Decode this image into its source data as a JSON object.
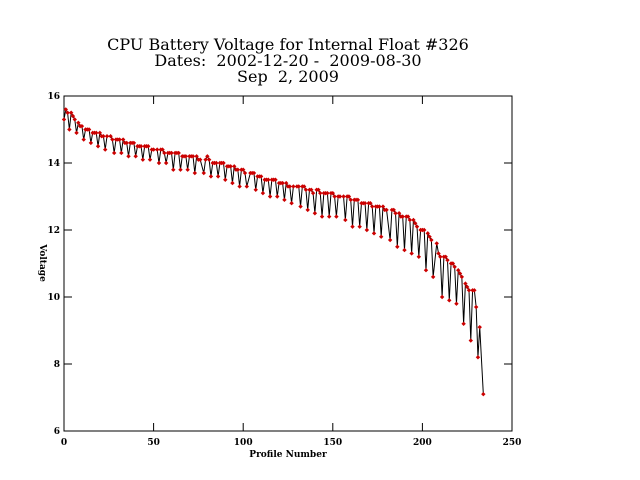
{
  "chart_data": {
    "type": "line",
    "title": [
      "CPU Battery Voltage for Internal Float #326",
      "Dates:  2002-12-20 -  2009-08-30",
      "Sep  2, 2009"
    ],
    "x_label": "Profile Number",
    "y_label": "Voltage",
    "xlim": [
      0,
      250
    ],
    "xticks": [
      0,
      50,
      100,
      150,
      200,
      250
    ],
    "ylim": [
      6,
      16
    ],
    "yticks": [
      6,
      8,
      10,
      12,
      14,
      16
    ],
    "line_color": "#000000",
    "marker_color": "#cc0000",
    "x": [
      0,
      1,
      2,
      3,
      4,
      5,
      6,
      7,
      8,
      9,
      10,
      11,
      12,
      13,
      14,
      15,
      16,
      17,
      18,
      19,
      20,
      21,
      22,
      23,
      24,
      26,
      27,
      28,
      29,
      30,
      31,
      32,
      33,
      34,
      35,
      36,
      37,
      38,
      39,
      40,
      41,
      42,
      43,
      44,
      45,
      46,
      47,
      48,
      49,
      50,
      52,
      53,
      54,
      55,
      56,
      57,
      58,
      59,
      60,
      61,
      62,
      63,
      64,
      65,
      66,
      67,
      68,
      69,
      70,
      71,
      72,
      73,
      74,
      75,
      76,
      78,
      79,
      80,
      81,
      82,
      83,
      84,
      85,
      86,
      87,
      88,
      89,
      90,
      91,
      92,
      93,
      94,
      95,
      96,
      97,
      98,
      99,
      100,
      101,
      102,
      104,
      105,
      106,
      107,
      108,
      109,
      110,
      111,
      112,
      113,
      114,
      115,
      116,
      117,
      118,
      119,
      120,
      121,
      122,
      123,
      124,
      125,
      126,
      127,
      128,
      130,
      131,
      132,
      133,
      134,
      135,
      136,
      137,
      138,
      139,
      140,
      141,
      142,
      143,
      144,
      145,
      146,
      147,
      148,
      149,
      150,
      151,
      152,
      153,
      154,
      156,
      157,
      158,
      159,
      160,
      161,
      162,
      163,
      164,
      165,
      166,
      167,
      168,
      169,
      170,
      171,
      172,
      173,
      174,
      175,
      176,
      177,
      178,
      179,
      180,
      182,
      183,
      184,
      185,
      186,
      187,
      188,
      189,
      190,
      191,
      192,
      193,
      194,
      195,
      196,
      197,
      198,
      199,
      200,
      201,
      202,
      203,
      204,
      205,
      206,
      208,
      209,
      210,
      211,
      212,
      213,
      214,
      215,
      216,
      217,
      218,
      219,
      220,
      221,
      222,
      223,
      224,
      225,
      226,
      227,
      228,
      229,
      230,
      231,
      232,
      234
    ],
    "values": [
      15.3,
      15.6,
      15.5,
      15.0,
      15.5,
      15.4,
      15.3,
      14.9,
      15.2,
      15.1,
      15.1,
      14.7,
      15.0,
      15.0,
      15.0,
      14.6,
      14.9,
      14.9,
      14.9,
      14.5,
      14.9,
      14.8,
      14.8,
      14.4,
      14.8,
      14.8,
      14.7,
      14.3,
      14.7,
      14.7,
      14.7,
      14.3,
      14.7,
      14.6,
      14.6,
      14.2,
      14.6,
      14.6,
      14.6,
      14.2,
      14.5,
      14.5,
      14.5,
      14.1,
      14.5,
      14.5,
      14.5,
      14.1,
      14.4,
      14.4,
      14.4,
      14.0,
      14.4,
      14.4,
      14.3,
      14.0,
      14.3,
      14.3,
      14.3,
      13.8,
      14.3,
      14.3,
      14.3,
      13.8,
      14.2,
      14.2,
      14.2,
      13.8,
      14.2,
      14.2,
      14.2,
      13.7,
      14.2,
      14.1,
      14.1,
      13.7,
      14.1,
      14.2,
      14.1,
      13.6,
      14.0,
      14.0,
      14.0,
      13.6,
      14.0,
      14.0,
      14.0,
      13.5,
      13.9,
      13.9,
      13.9,
      13.4,
      13.9,
      13.8,
      13.8,
      13.3,
      13.8,
      13.8,
      13.7,
      13.3,
      13.7,
      13.7,
      13.7,
      13.2,
      13.6,
      13.6,
      13.6,
      13.1,
      13.5,
      13.5,
      13.5,
      13.0,
      13.5,
      13.5,
      13.5,
      13.0,
      13.4,
      13.4,
      13.4,
      12.9,
      13.4,
      13.3,
      13.3,
      12.8,
      13.3,
      13.3,
      13.3,
      12.7,
      13.3,
      13.3,
      13.2,
      12.6,
      13.2,
      13.2,
      13.1,
      12.5,
      13.2,
      13.2,
      13.1,
      12.4,
      13.1,
      13.1,
      13.1,
      12.4,
      13.1,
      13.1,
      13.0,
      12.4,
      13.0,
      13.0,
      13.0,
      12.3,
      13.0,
      13.0,
      12.9,
      12.1,
      12.9,
      12.9,
      12.9,
      12.1,
      12.8,
      12.8,
      12.8,
      12.0,
      12.8,
      12.8,
      12.7,
      11.9,
      12.7,
      12.7,
      12.7,
      11.8,
      12.7,
      12.6,
      12.6,
      11.7,
      12.6,
      12.6,
      12.5,
      11.5,
      12.5,
      12.4,
      12.4,
      11.4,
      12.4,
      12.4,
      12.3,
      11.3,
      12.3,
      12.2,
      12.1,
      11.2,
      12.0,
      12.0,
      12.0,
      10.8,
      11.9,
      11.8,
      11.7,
      10.6,
      11.6,
      11.3,
      11.2,
      10.0,
      11.2,
      11.2,
      11.1,
      9.9,
      11.0,
      11.0,
      10.9,
      9.8,
      10.8,
      10.7,
      10.6,
      9.2,
      10.4,
      10.3,
      10.2,
      8.7,
      10.2,
      10.2,
      9.7,
      8.2,
      9.1,
      7.1
    ]
  }
}
